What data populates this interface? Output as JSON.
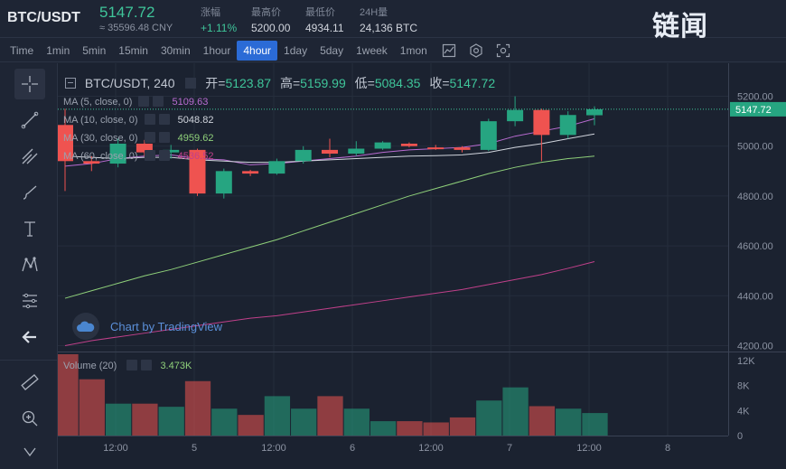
{
  "ticker": {
    "pair": "BTC/USDT",
    "price": "5147.72",
    "price_cny": "≈ 35596.48 CNY",
    "change_label": "涨幅",
    "change_value": "+1.11%",
    "high_label": "最高价",
    "high_value": "5200.00",
    "low_label": "最低价",
    "low_value": "4934.11",
    "vol_label": "24H量",
    "vol_value": "24,136 BTC"
  },
  "logo": {
    "text": "链闻"
  },
  "toolbar": {
    "timeframes": [
      "Time",
      "1min",
      "5min",
      "15min",
      "30min",
      "1hour",
      "4hour",
      "1day",
      "5day",
      "1week",
      "1mon"
    ],
    "active": "4hour"
  },
  "legend": {
    "symbol": "BTC/USDT, 240",
    "open_label": "开=",
    "open": "5123.87",
    "high_label": "高=",
    "high": "5159.99",
    "low_label": "低=",
    "low": "5084.35",
    "close_label": "收=",
    "close": "5147.72"
  },
  "ma": [
    {
      "label": "MA (5, close, 0)",
      "value": "5109.63",
      "color": "#b86bd0"
    },
    {
      "label": "MA (10, close, 0)",
      "value": "5048.82",
      "color": "#d0d4dc"
    },
    {
      "label": "MA (30, close, 0)",
      "value": "4959.62",
      "color": "#8fd07a"
    },
    {
      "label": "MA (60, close, 0)",
      "value": "4536.52",
      "color": "#c0408a"
    }
  ],
  "volume": {
    "label": "Volume (20)",
    "value": "3.473K"
  },
  "watermark": "Chart by TradingView",
  "price_axis": [
    "5200.00",
    "5000.00",
    "4800.00",
    "4600.00",
    "4400.00",
    "4200.00"
  ],
  "last_price_tag": "5147.72",
  "volume_axis": [
    "12K",
    "8K",
    "4K",
    "0"
  ],
  "time_axis": [
    "12:00",
    "5",
    "12:00",
    "6",
    "12:00",
    "7",
    "12:00",
    "8"
  ],
  "chart_data": {
    "type": "candlestick",
    "up_color": "#26a581",
    "down_color": "#ef5350",
    "candles": [
      {
        "o": 5085,
        "h": 5150,
        "l": 4820,
        "c": 4940
      },
      {
        "o": 4940,
        "h": 4960,
        "l": 4900,
        "c": 4930
      },
      {
        "o": 4930,
        "h": 5030,
        "l": 4915,
        "c": 5010
      },
      {
        "o": 5010,
        "h": 5025,
        "l": 4960,
        "c": 4975
      },
      {
        "o": 4975,
        "h": 5005,
        "l": 4950,
        "c": 4985
      },
      {
        "o": 4985,
        "h": 4990,
        "l": 4800,
        "c": 4810
      },
      {
        "o": 4810,
        "h": 4910,
        "l": 4790,
        "c": 4900
      },
      {
        "o": 4900,
        "h": 4905,
        "l": 4880,
        "c": 4890
      },
      {
        "o": 4890,
        "h": 4950,
        "l": 4885,
        "c": 4940
      },
      {
        "o": 4940,
        "h": 5000,
        "l": 4930,
        "c": 4985
      },
      {
        "o": 4985,
        "h": 5030,
        "l": 4955,
        "c": 4970
      },
      {
        "o": 4970,
        "h": 5020,
        "l": 4960,
        "c": 4990
      },
      {
        "o": 4990,
        "h": 5020,
        "l": 4985,
        "c": 5015
      },
      {
        "o": 5010,
        "h": 5015,
        "l": 4995,
        "c": 5000
      },
      {
        "o": 4995,
        "h": 5005,
        "l": 4985,
        "c": 4990
      },
      {
        "o": 4995,
        "h": 5000,
        "l": 4975,
        "c": 4985
      },
      {
        "o": 4985,
        "h": 5110,
        "l": 4980,
        "c": 5100
      },
      {
        "o": 5100,
        "h": 5200,
        "l": 5080,
        "c": 5145
      },
      {
        "o": 5145,
        "h": 5150,
        "l": 4940,
        "c": 5045
      },
      {
        "o": 5045,
        "h": 5140,
        "l": 5030,
        "c": 5125
      },
      {
        "o": 5124,
        "h": 5160,
        "l": 5084,
        "c": 5148
      }
    ],
    "volumes": [
      13000,
      9000,
      5100,
      5100,
      4600,
      8700,
      4300,
      3300,
      6300,
      4300,
      6300,
      4300,
      2300,
      2300,
      2100,
      2900,
      5600,
      7700,
      4700,
      4300,
      3600
    ],
    "ma5": [
      4920,
      4930,
      4950,
      4960,
      4965,
      4950,
      4945,
      4925,
      4930,
      4940,
      4950,
      4960,
      4975,
      4985,
      4990,
      4995,
      5010,
      5040,
      5060,
      5080,
      5110
    ],
    "ma10": [
      4960,
      4955,
      4950,
      4955,
      4955,
      4945,
      4940,
      4935,
      4935,
      4940,
      4945,
      4950,
      4955,
      4960,
      4962,
      4965,
      4975,
      4995,
      5010,
      5030,
      5049
    ],
    "ma30": [
      4390,
      4420,
      4450,
      4480,
      4505,
      4535,
      4565,
      4595,
      4625,
      4660,
      4695,
      4730,
      4765,
      4800,
      4830,
      4860,
      4890,
      4915,
      4935,
      4950,
      4960
    ],
    "ma60": [
      4200,
      4220,
      4235,
      4250,
      4265,
      4280,
      4295,
      4310,
      4320,
      4335,
      4350,
      4365,
      4380,
      4395,
      4410,
      4425,
      4445,
      4465,
      4485,
      4510,
      4537
    ],
    "price_range": [
      4180,
      5260
    ],
    "volume_range": [
      0,
      13000
    ]
  }
}
